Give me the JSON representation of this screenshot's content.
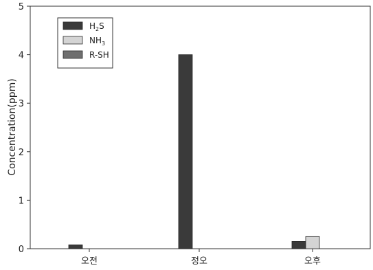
{
  "chart_data": {
    "type": "bar",
    "categories": [
      "오전",
      "정오",
      "오후"
    ],
    "series": [
      {
        "name": "H2S",
        "label_main": "H",
        "label_sub": "2",
        "label_tail": "S",
        "color": "#3a3a3a",
        "values": [
          0.08,
          4.0,
          0.15
        ]
      },
      {
        "name": "NH3",
        "label_main": "NH",
        "label_sub": "3",
        "label_tail": "",
        "color": "#d4d4d4",
        "values": [
          0,
          0,
          0.25
        ]
      },
      {
        "name": "R-SH",
        "label_main": "R-SH",
        "label_sub": "",
        "label_tail": "",
        "color": "#6f6f6f",
        "values": [
          0,
          0,
          0
        ]
      }
    ],
    "ylabel": "Concentration(ppm)",
    "xlabel": "",
    "title": "",
    "ylim": [
      0,
      5
    ],
    "yticks": [
      "0",
      "1",
      "2",
      "3",
      "4",
      "5"
    ],
    "grid": false,
    "legend_position": "top-left"
  }
}
